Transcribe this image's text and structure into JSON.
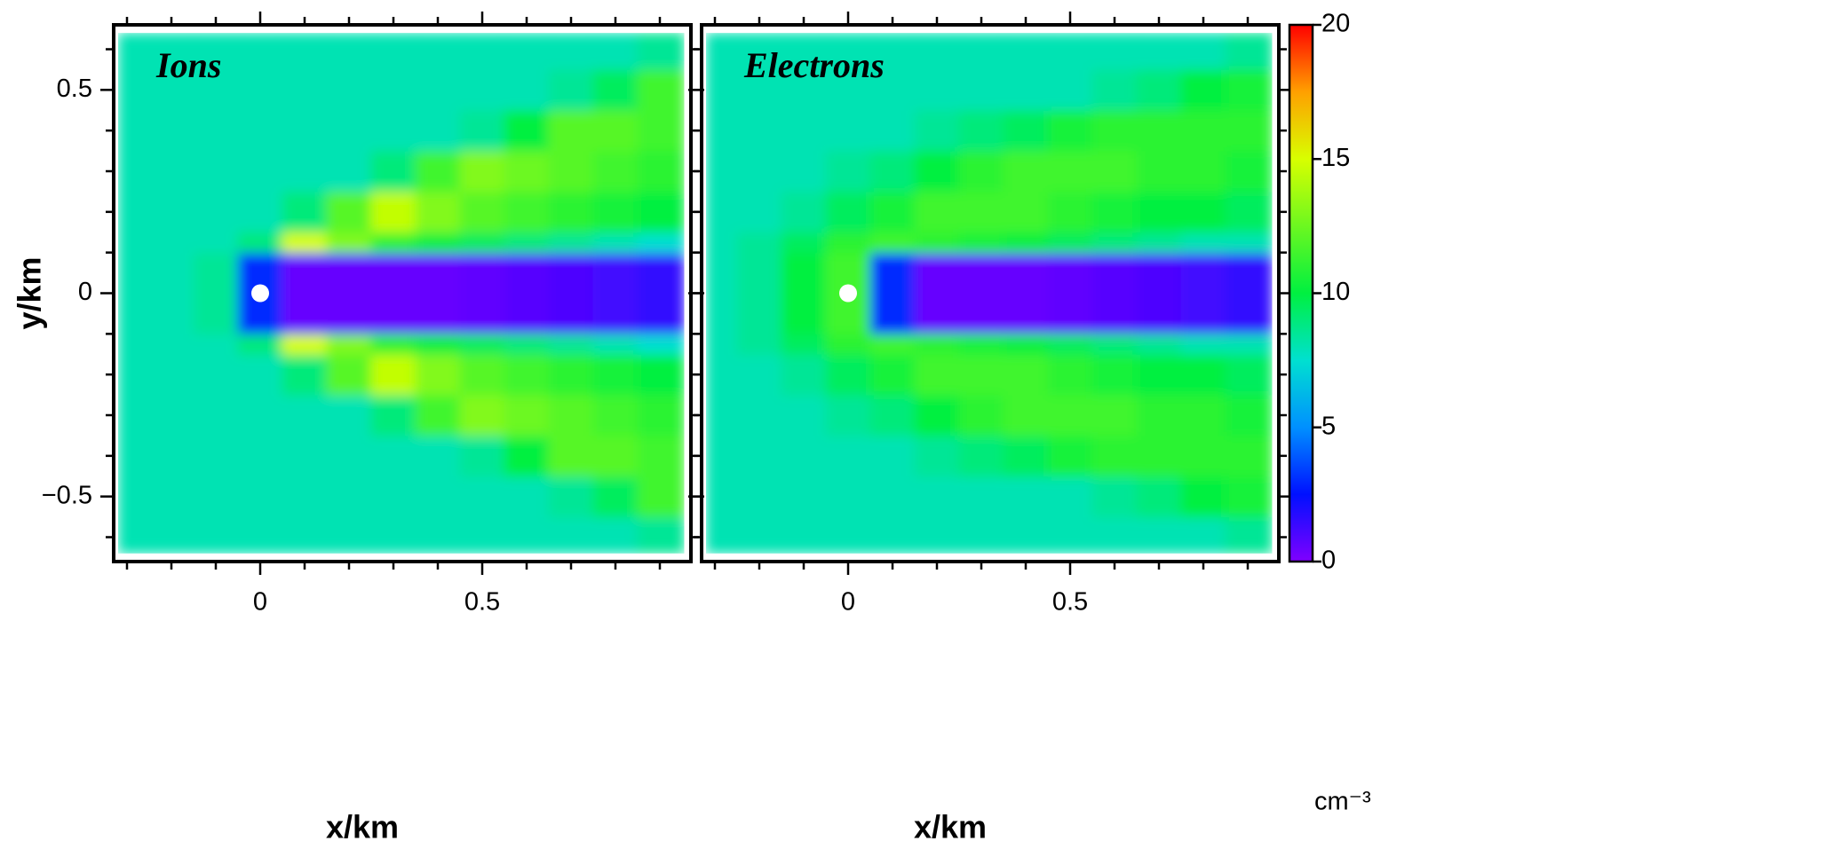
{
  "chart_data": [
    {
      "type": "heatmap",
      "title": "Ions",
      "x_label": "x/km",
      "y_label": "y/km",
      "xlim": [
        -0.33,
        0.97
      ],
      "ylim": [
        -0.66,
        0.66
      ],
      "xticks": [
        0,
        0.5
      ],
      "yticks": [
        {
          "value": -0.5,
          "label": "−0.5"
        },
        0,
        0.5
      ],
      "xminor": [
        -0.3,
        -0.2,
        -0.1,
        0.1,
        0.2,
        0.3,
        0.4,
        0.6,
        0.7,
        0.8,
        0.9
      ],
      "yminor": [
        -0.6,
        -0.4,
        -0.3,
        -0.2,
        -0.1,
        0.1,
        0.2,
        0.3,
        0.4,
        0.6
      ],
      "obstacle": {
        "x": 0,
        "y": 0,
        "color": "#ffffff"
      },
      "xbins": [
        -0.32,
        -0.25,
        -0.15,
        -0.05,
        0.05,
        0.15,
        0.25,
        0.35,
        0.45,
        0.55,
        0.65,
        0.75,
        0.85,
        0.955
      ],
      "ybins": [
        -0.64,
        -0.55,
        -0.45,
        -0.35,
        -0.25,
        -0.15,
        -0.1,
        0.1,
        0.15,
        0.25,
        0.35,
        0.45,
        0.55,
        0.64
      ],
      "z": [
        [
          8,
          8,
          8,
          8,
          8,
          8,
          8,
          8,
          8,
          8,
          8,
          8,
          8.5
        ],
        [
          8,
          8,
          8,
          8,
          8,
          8,
          8,
          8,
          8,
          8,
          8.5,
          9.5,
          11.5
        ],
        [
          8,
          8,
          8,
          8,
          8,
          8,
          8,
          8,
          8.5,
          10,
          12,
          12,
          11.5
        ],
        [
          8,
          8,
          8,
          8,
          8,
          8,
          9,
          11.5,
          13,
          12.5,
          12,
          11.5,
          11
        ],
        [
          8,
          8,
          8,
          8,
          9,
          12,
          14.5,
          13,
          12,
          11.5,
          11,
          10.5,
          10
        ],
        [
          8,
          8,
          8,
          9,
          15,
          13,
          11,
          10,
          9.5,
          9,
          8.5,
          8,
          7.5
        ],
        [
          8,
          8,
          8.5,
          3,
          0.5,
          0.5,
          0.5,
          0.5,
          0.6,
          0.8,
          1,
          1.2,
          1.5
        ],
        [
          8,
          8,
          8,
          9,
          15,
          13,
          11,
          10,
          9.5,
          9,
          8.5,
          8,
          7.5
        ],
        [
          8,
          8,
          8,
          8,
          9,
          12,
          14.5,
          13,
          12,
          11.5,
          11,
          10.5,
          10
        ],
        [
          8,
          8,
          8,
          8,
          8,
          8,
          9,
          11.5,
          13,
          12.5,
          12,
          11.5,
          11
        ],
        [
          8,
          8,
          8,
          8,
          8,
          8,
          8,
          8,
          8.5,
          10,
          12,
          12,
          11.5
        ],
        [
          8,
          8,
          8,
          8,
          8,
          8,
          8,
          8,
          8,
          8,
          8.5,
          9.5,
          11.5
        ],
        [
          8,
          8,
          8,
          8,
          8,
          8,
          8,
          8,
          8,
          8,
          8,
          8,
          8.5
        ]
      ]
    },
    {
      "type": "heatmap",
      "title": "Electrons",
      "x_label": "x/km",
      "xlim": [
        -0.33,
        0.97
      ],
      "ylim": [
        -0.66,
        0.66
      ],
      "xticks": [
        0,
        0.5
      ],
      "ymajor": [
        -0.5,
        0,
        0.5
      ],
      "xminor": [
        -0.3,
        -0.2,
        -0.1,
        0.1,
        0.2,
        0.3,
        0.4,
        0.6,
        0.7,
        0.8,
        0.9
      ],
      "yminor": [
        -0.6,
        -0.4,
        -0.3,
        -0.2,
        -0.1,
        0.1,
        0.2,
        0.3,
        0.4,
        0.6
      ],
      "obstacle": {
        "x": 0,
        "y": 0,
        "color": "#ffffff"
      },
      "xbins": [
        -0.32,
        -0.25,
        -0.15,
        -0.05,
        0.05,
        0.15,
        0.25,
        0.35,
        0.45,
        0.55,
        0.65,
        0.75,
        0.85,
        0.955
      ],
      "ybins": [
        -0.64,
        -0.55,
        -0.45,
        -0.35,
        -0.25,
        -0.15,
        -0.1,
        0.1,
        0.15,
        0.25,
        0.35,
        0.45,
        0.55,
        0.64
      ],
      "z": [
        [
          8,
          8,
          8,
          8,
          8,
          8,
          8,
          8,
          8,
          8,
          8,
          8,
          8.5
        ],
        [
          8,
          8,
          8,
          8,
          8,
          8,
          8,
          8,
          8,
          8.5,
          9,
          10,
          10.5
        ],
        [
          8,
          8,
          8,
          8,
          8,
          8.5,
          9,
          9.5,
          10.5,
          11,
          11,
          11,
          11
        ],
        [
          8,
          8,
          8,
          8.5,
          9,
          10,
          11,
          11.5,
          11.5,
          11.5,
          11,
          11,
          10.5
        ],
        [
          8,
          8,
          8.5,
          9.5,
          10.5,
          11.5,
          11.5,
          11.5,
          11,
          10.5,
          10,
          10,
          9.5
        ],
        [
          8,
          8.5,
          9.5,
          11,
          11.5,
          11,
          10.5,
          10,
          9.5,
          9,
          8.5,
          8,
          8
        ],
        [
          8,
          8.5,
          10,
          11.5,
          3,
          0.5,
          0.5,
          0.5,
          0.6,
          0.8,
          1,
          1.2,
          1.5
        ],
        [
          8,
          8.5,
          9.5,
          11,
          11.5,
          11,
          10.5,
          10,
          9.5,
          9,
          8.5,
          8,
          8
        ],
        [
          8,
          8,
          8.5,
          9.5,
          10.5,
          11.5,
          11.5,
          11.5,
          11,
          10.5,
          10,
          10,
          9.5
        ],
        [
          8,
          8,
          8,
          8.5,
          9,
          10,
          11,
          11.5,
          11.5,
          11.5,
          11,
          11,
          10.5
        ],
        [
          8,
          8,
          8,
          8,
          8,
          8.5,
          9,
          9.5,
          10.5,
          11,
          11,
          11,
          11
        ],
        [
          8,
          8,
          8,
          8,
          8,
          8,
          8,
          8,
          8,
          8.5,
          9,
          10,
          10.5
        ],
        [
          8,
          8,
          8,
          8,
          8,
          8,
          8,
          8,
          8,
          8,
          8,
          8,
          8.5
        ]
      ]
    }
  ],
  "colorbar": {
    "label": "cm⁻³",
    "zlim": [
      0,
      20
    ],
    "zticks": [
      0,
      5,
      10,
      15,
      20
    ],
    "colorscale": [
      {
        "value": 0,
        "color": "#8000ff"
      },
      {
        "value": 2.5,
        "color": "#0010ff"
      },
      {
        "value": 5,
        "color": "#0090ff"
      },
      {
        "value": 7.5,
        "color": "#00e0d0"
      },
      {
        "value": 10,
        "color": "#00f040"
      },
      {
        "value": 15,
        "color": "#d8ff00"
      },
      {
        "value": 17.5,
        "color": "#ffa000"
      },
      {
        "value": 20,
        "color": "#ff0000"
      }
    ]
  }
}
